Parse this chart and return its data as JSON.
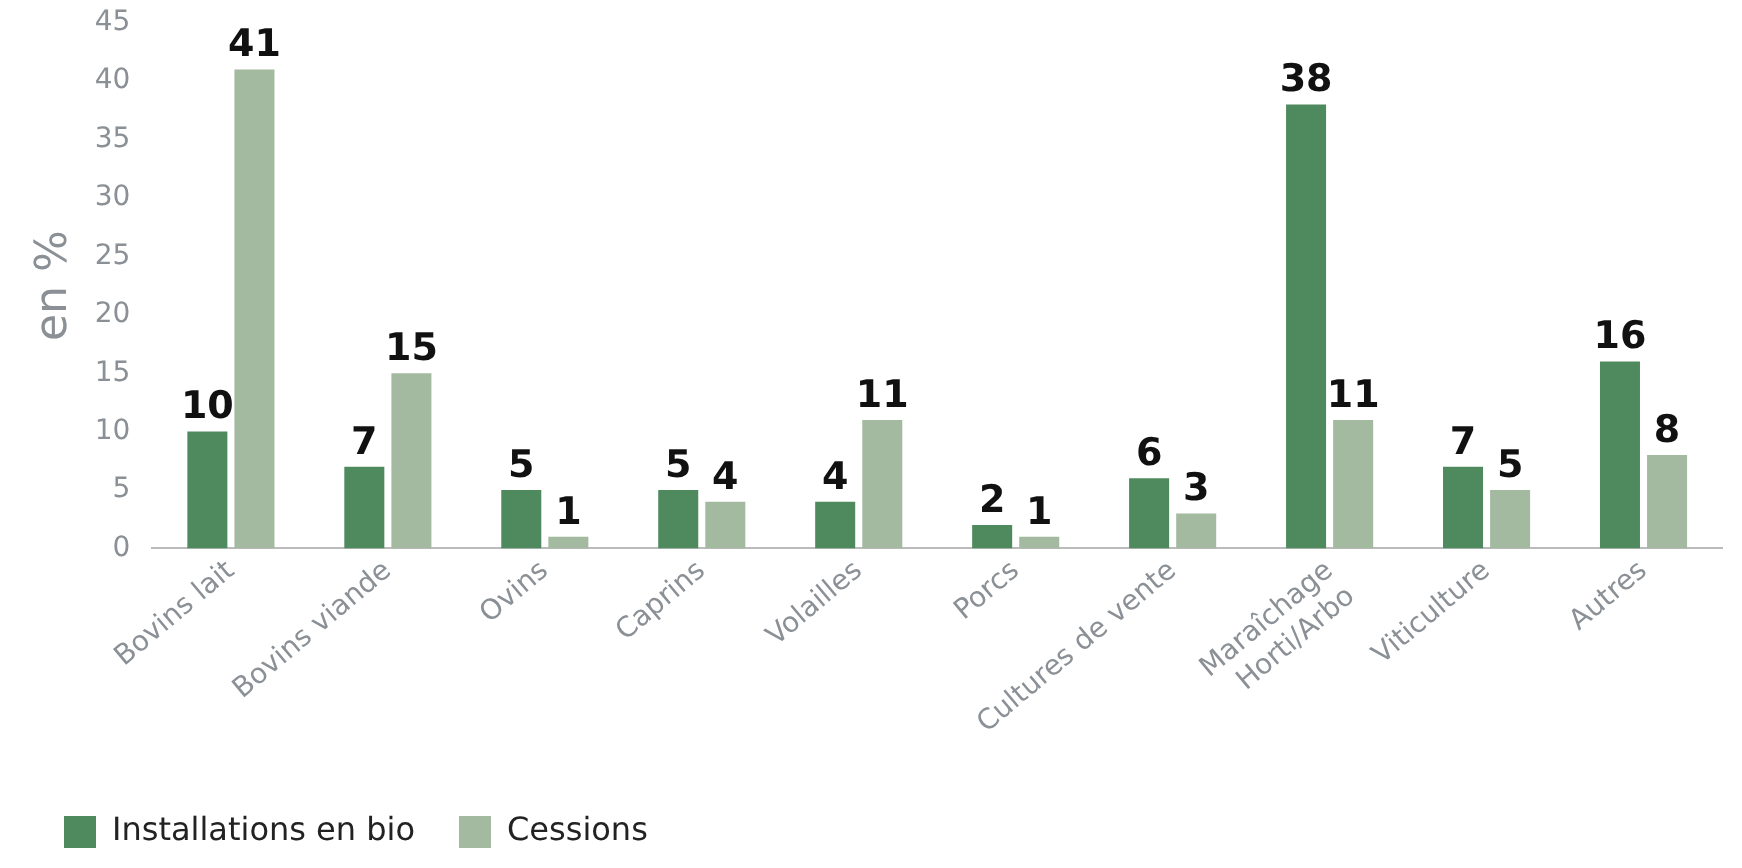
{
  "chart_data": {
    "type": "bar",
    "ylabel": "en %",
    "categories": [
      "Bovins lait",
      "Bovins viande",
      "Ovins",
      "Caprins",
      "Volailles",
      "Porcs",
      "Cultures de vente",
      "Maraîchage\nHorti/Arbo",
      "Viticulture",
      "Autres"
    ],
    "series": [
      {
        "name": "Installations en bio",
        "color": "#4f8a5f",
        "values": [
          10,
          7,
          5,
          5,
          4,
          2,
          6,
          38,
          7,
          16
        ]
      },
      {
        "name": "Cessions",
        "color": "#a3baa0",
        "values": [
          41,
          15,
          1,
          4,
          11,
          1,
          3,
          11,
          5,
          8
        ]
      }
    ],
    "ylim": [
      0,
      45
    ],
    "yticks": [
      0,
      5,
      10,
      15,
      20,
      25,
      30,
      35,
      40,
      45
    ],
    "grid": false,
    "legend": "bottom",
    "data_labels": true
  }
}
